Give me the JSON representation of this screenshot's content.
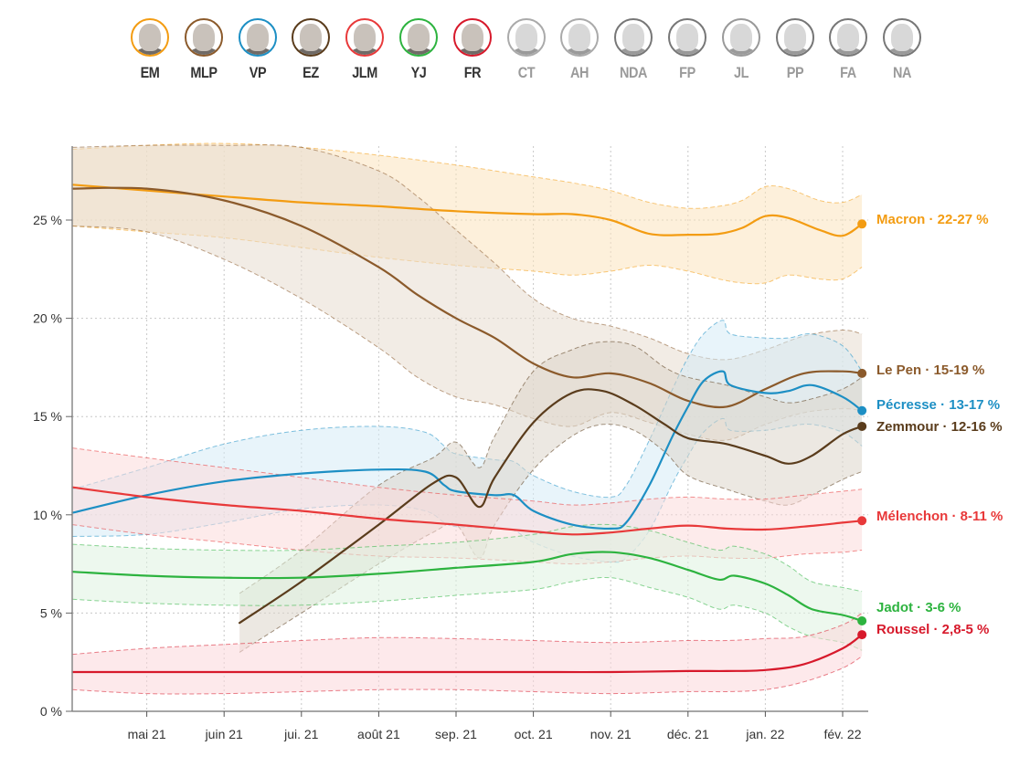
{
  "candidates": [
    {
      "abbr": "EM",
      "color": "#f39c12",
      "active": true
    },
    {
      "abbr": "MLP",
      "color": "#8b5a2b",
      "active": true
    },
    {
      "abbr": "VP",
      "color": "#1d8fc4",
      "active": true
    },
    {
      "abbr": "EZ",
      "color": "#5a3c1c",
      "active": true
    },
    {
      "abbr": "JLM",
      "color": "#e8393a",
      "active": true
    },
    {
      "abbr": "YJ",
      "color": "#2db33f",
      "active": true
    },
    {
      "abbr": "FR",
      "color": "#d7192b",
      "active": true
    },
    {
      "abbr": "CT",
      "color": "#aaaaaa",
      "active": false
    },
    {
      "abbr": "AH",
      "color": "#aaaaaa",
      "active": false
    },
    {
      "abbr": "NDA",
      "color": "#777777",
      "active": false
    },
    {
      "abbr": "FP",
      "color": "#777777",
      "active": false
    },
    {
      "abbr": "JL",
      "color": "#999999",
      "active": false
    },
    {
      "abbr": "PP",
      "color": "#777777",
      "active": false
    },
    {
      "abbr": "FA",
      "color": "#777777",
      "active": false
    },
    {
      "abbr": "NA",
      "color": "#777777",
      "active": false
    }
  ],
  "chart_data": {
    "type": "line",
    "title": "",
    "xlabel": "",
    "ylabel": "",
    "ylim": [
      0,
      28
    ],
    "grid": true,
    "y_ticks": [
      {
        "value": 0,
        "label": "0 %"
      },
      {
        "value": 5,
        "label": "5 %"
      },
      {
        "value": 10,
        "label": "10 %"
      },
      {
        "value": 15,
        "label": "15 %"
      },
      {
        "value": 20,
        "label": "20 %"
      },
      {
        "value": 25,
        "label": "25 %"
      }
    ],
    "x_unit": "months since 1 April 2021",
    "xlim": [
      0,
      10.3
    ],
    "x_ticks": [
      {
        "value": 1,
        "label": "mai 21"
      },
      {
        "value": 2,
        "label": "juin 21"
      },
      {
        "value": 3,
        "label": "jui. 21"
      },
      {
        "value": 4,
        "label": "août 21"
      },
      {
        "value": 5,
        "label": "sep. 21"
      },
      {
        "value": 6,
        "label": "oct. 21"
      },
      {
        "value": 7,
        "label": "nov. 21"
      },
      {
        "value": 8,
        "label": "déc. 21"
      },
      {
        "value": 9,
        "label": "jan. 22"
      },
      {
        "value": 10,
        "label": "fév. 22"
      }
    ],
    "series": [
      {
        "name": "Macron",
        "label": "Macron · 22-27 %",
        "color": "#f39c12",
        "band_color": "#fbe3bd",
        "x": [
          0.04,
          1,
          2,
          3,
          4,
          5,
          6,
          6.5,
          7,
          7.5,
          8,
          8.4,
          8.7,
          9,
          9.3,
          9.7,
          10,
          10.25
        ],
        "values": [
          26.8,
          26.5,
          26.2,
          25.9,
          25.7,
          25.45,
          25.3,
          25.3,
          25.0,
          24.3,
          24.25,
          24.3,
          24.6,
          25.2,
          25.1,
          24.5,
          24.2,
          24.8
        ],
        "upper": [
          28.6,
          28.8,
          28.9,
          28.7,
          28.3,
          27.8,
          27.2,
          26.9,
          26.5,
          25.9,
          25.6,
          25.7,
          26.0,
          26.7,
          26.6,
          26.0,
          25.9,
          26.3
        ],
        "lower": [
          24.7,
          24.4,
          24.1,
          23.6,
          23.1,
          22.7,
          22.4,
          22.2,
          22.4,
          22.7,
          22.4,
          22.0,
          21.8,
          21.8,
          22.2,
          22.0,
          22.0,
          22.6
        ]
      },
      {
        "name": "Le Pen",
        "label": "Le Pen · 15-19 %",
        "color": "#8b5a2b",
        "band_color": "#e8ddcf",
        "x": [
          0.04,
          1,
          2,
          3,
          4,
          4.5,
          5,
          5.5,
          6,
          6.5,
          7,
          7.5,
          8,
          8.5,
          9,
          9.5,
          10,
          10.25
        ],
        "values": [
          26.6,
          26.6,
          26.0,
          24.7,
          22.6,
          21.2,
          20.0,
          19.0,
          17.7,
          17.0,
          17.2,
          16.7,
          15.8,
          15.5,
          16.4,
          17.2,
          17.3,
          17.2
        ],
        "upper": [
          28.7,
          28.8,
          28.8,
          28.7,
          27.5,
          26.2,
          24.5,
          22.8,
          21.0,
          20.0,
          19.6,
          19.0,
          18.2,
          17.9,
          18.4,
          19.1,
          19.4,
          19.2
        ],
        "lower": [
          24.7,
          24.4,
          23.0,
          21.0,
          18.5,
          17.0,
          16.0,
          15.6,
          14.9,
          14.5,
          15.2,
          14.7,
          14.1,
          13.8,
          14.6,
          15.2,
          15.4,
          15.3
        ]
      },
      {
        "name": "Pécresse",
        "label": "Pécresse · 13-17 %",
        "color": "#1d8fc4",
        "band_color": "#d6ebf5",
        "x": [
          0.04,
          1,
          2,
          3,
          4,
          4.6,
          4.85,
          5,
          5.5,
          5.75,
          6,
          6.5,
          7,
          7.2,
          7.5,
          7.8,
          8,
          8.2,
          8.45,
          8.55,
          9,
          9.3,
          9.6,
          10,
          10.25
        ],
        "values": [
          10.1,
          11.0,
          11.7,
          12.1,
          12.3,
          12.2,
          11.5,
          11.2,
          11.0,
          11.0,
          10.2,
          9.5,
          9.3,
          9.6,
          11.5,
          14.0,
          15.5,
          16.8,
          17.3,
          16.6,
          16.2,
          16.3,
          16.6,
          16.0,
          15.3
        ],
        "upper": [
          11.3,
          12.4,
          13.6,
          14.3,
          14.5,
          14.2,
          13.5,
          13.1,
          12.8,
          12.7,
          12.0,
          11.2,
          10.9,
          11.5,
          13.8,
          16.4,
          18.0,
          19.2,
          19.9,
          19.2,
          19.0,
          19.0,
          19.2,
          18.6,
          17.3
        ],
        "lower": [
          8.9,
          9.0,
          9.6,
          10.3,
          10.5,
          10.2,
          9.6,
          9.4,
          9.3,
          9.2,
          8.6,
          7.9,
          7.6,
          7.8,
          9.2,
          11.6,
          13.0,
          14.2,
          14.9,
          14.3,
          14.3,
          14.5,
          14.6,
          14.2,
          13.5
        ]
      },
      {
        "name": "Zemmour",
        "label": "Zemmour · 12-16 %",
        "color": "#5a3c1c",
        "band_color": "#ddd5ca",
        "x": [
          2.2,
          3,
          4,
          4.7,
          5,
          5.3,
          5.5,
          6,
          6.5,
          6.9,
          7.3,
          7.7,
          8,
          8.5,
          9,
          9.3,
          9.6,
          10,
          10.25
        ],
        "values": [
          4.5,
          6.6,
          9.5,
          11.6,
          11.9,
          10.4,
          11.9,
          14.7,
          16.2,
          16.3,
          15.6,
          14.6,
          13.9,
          13.6,
          13.0,
          12.6,
          13.0,
          14.1,
          14.5
        ],
        "upper": [
          6.0,
          8.2,
          11.5,
          12.9,
          13.7,
          12.4,
          14.0,
          17.3,
          18.4,
          18.8,
          18.6,
          17.5,
          17.0,
          16.6,
          16.0,
          15.7,
          15.9,
          16.4,
          17.0
        ],
        "lower": [
          3.0,
          5.0,
          7.5,
          9.1,
          9.5,
          7.8,
          9.5,
          12.3,
          14.0,
          14.6,
          14.3,
          13.2,
          12.0,
          11.3,
          10.7,
          10.5,
          11.0,
          11.8,
          12.2
        ]
      },
      {
        "name": "Mélenchon",
        "label": "Mélenchon · 8-11 %",
        "color": "#e8393a",
        "band_color": "#fbdadb",
        "x": [
          0.04,
          1,
          2,
          3,
          4,
          5,
          6,
          6.5,
          7,
          7.5,
          8,
          8.5,
          9,
          9.5,
          10,
          10.25
        ],
        "values": [
          11.4,
          10.9,
          10.5,
          10.2,
          9.8,
          9.5,
          9.15,
          9.0,
          9.1,
          9.3,
          9.45,
          9.3,
          9.25,
          9.4,
          9.6,
          9.7
        ],
        "upper": [
          13.4,
          12.9,
          12.4,
          11.9,
          11.4,
          11.0,
          10.7,
          10.5,
          10.6,
          10.8,
          10.9,
          10.8,
          10.8,
          11.0,
          11.2,
          11.3
        ],
        "lower": [
          9.5,
          9.0,
          8.6,
          8.2,
          7.9,
          7.8,
          7.6,
          7.5,
          7.6,
          7.8,
          7.9,
          7.8,
          7.8,
          8.0,
          8.1,
          8.2
        ]
      },
      {
        "name": "Jadot",
        "label": "Jadot · 3-6 %",
        "color": "#2db33f",
        "band_color": "#def2e0",
        "x": [
          0.04,
          1,
          2,
          3,
          4,
          5,
          6,
          6.5,
          7,
          7.5,
          8,
          8.4,
          8.6,
          9,
          9.3,
          9.6,
          10,
          10.25
        ],
        "values": [
          7.1,
          6.9,
          6.8,
          6.8,
          7.0,
          7.3,
          7.6,
          8.0,
          8.1,
          7.8,
          7.2,
          6.7,
          6.9,
          6.5,
          5.9,
          5.2,
          4.9,
          4.6
        ],
        "upper": [
          8.5,
          8.3,
          8.2,
          8.2,
          8.4,
          8.6,
          9.0,
          9.4,
          9.5,
          9.2,
          8.6,
          8.2,
          8.4,
          8.0,
          7.4,
          6.6,
          6.3,
          6.1
        ],
        "lower": [
          5.7,
          5.5,
          5.4,
          5.4,
          5.6,
          5.9,
          6.2,
          6.6,
          6.8,
          6.3,
          5.8,
          5.2,
          5.4,
          5.0,
          4.3,
          3.8,
          3.5,
          3.1
        ]
      },
      {
        "name": "Roussel",
        "label": "Roussel · 2,8-5 %",
        "color": "#d7192b",
        "band_color": "#fbd7da",
        "x": [
          0.04,
          1,
          2,
          3,
          4,
          5,
          6,
          7,
          8,
          8.5,
          9,
          9.5,
          10,
          10.25
        ],
        "values": [
          2.0,
          2.0,
          2.0,
          2.0,
          2.0,
          2.0,
          2.0,
          2.0,
          2.05,
          2.05,
          2.1,
          2.4,
          3.2,
          3.9
        ],
        "upper": [
          2.9,
          3.2,
          3.4,
          3.6,
          3.75,
          3.7,
          3.6,
          3.5,
          3.6,
          3.6,
          3.7,
          3.8,
          4.4,
          5.0
        ],
        "lower": [
          1.1,
          0.9,
          0.9,
          1.0,
          1.1,
          1.1,
          1.0,
          0.9,
          1.0,
          1.0,
          1.1,
          1.5,
          2.2,
          2.8
        ]
      }
    ]
  }
}
